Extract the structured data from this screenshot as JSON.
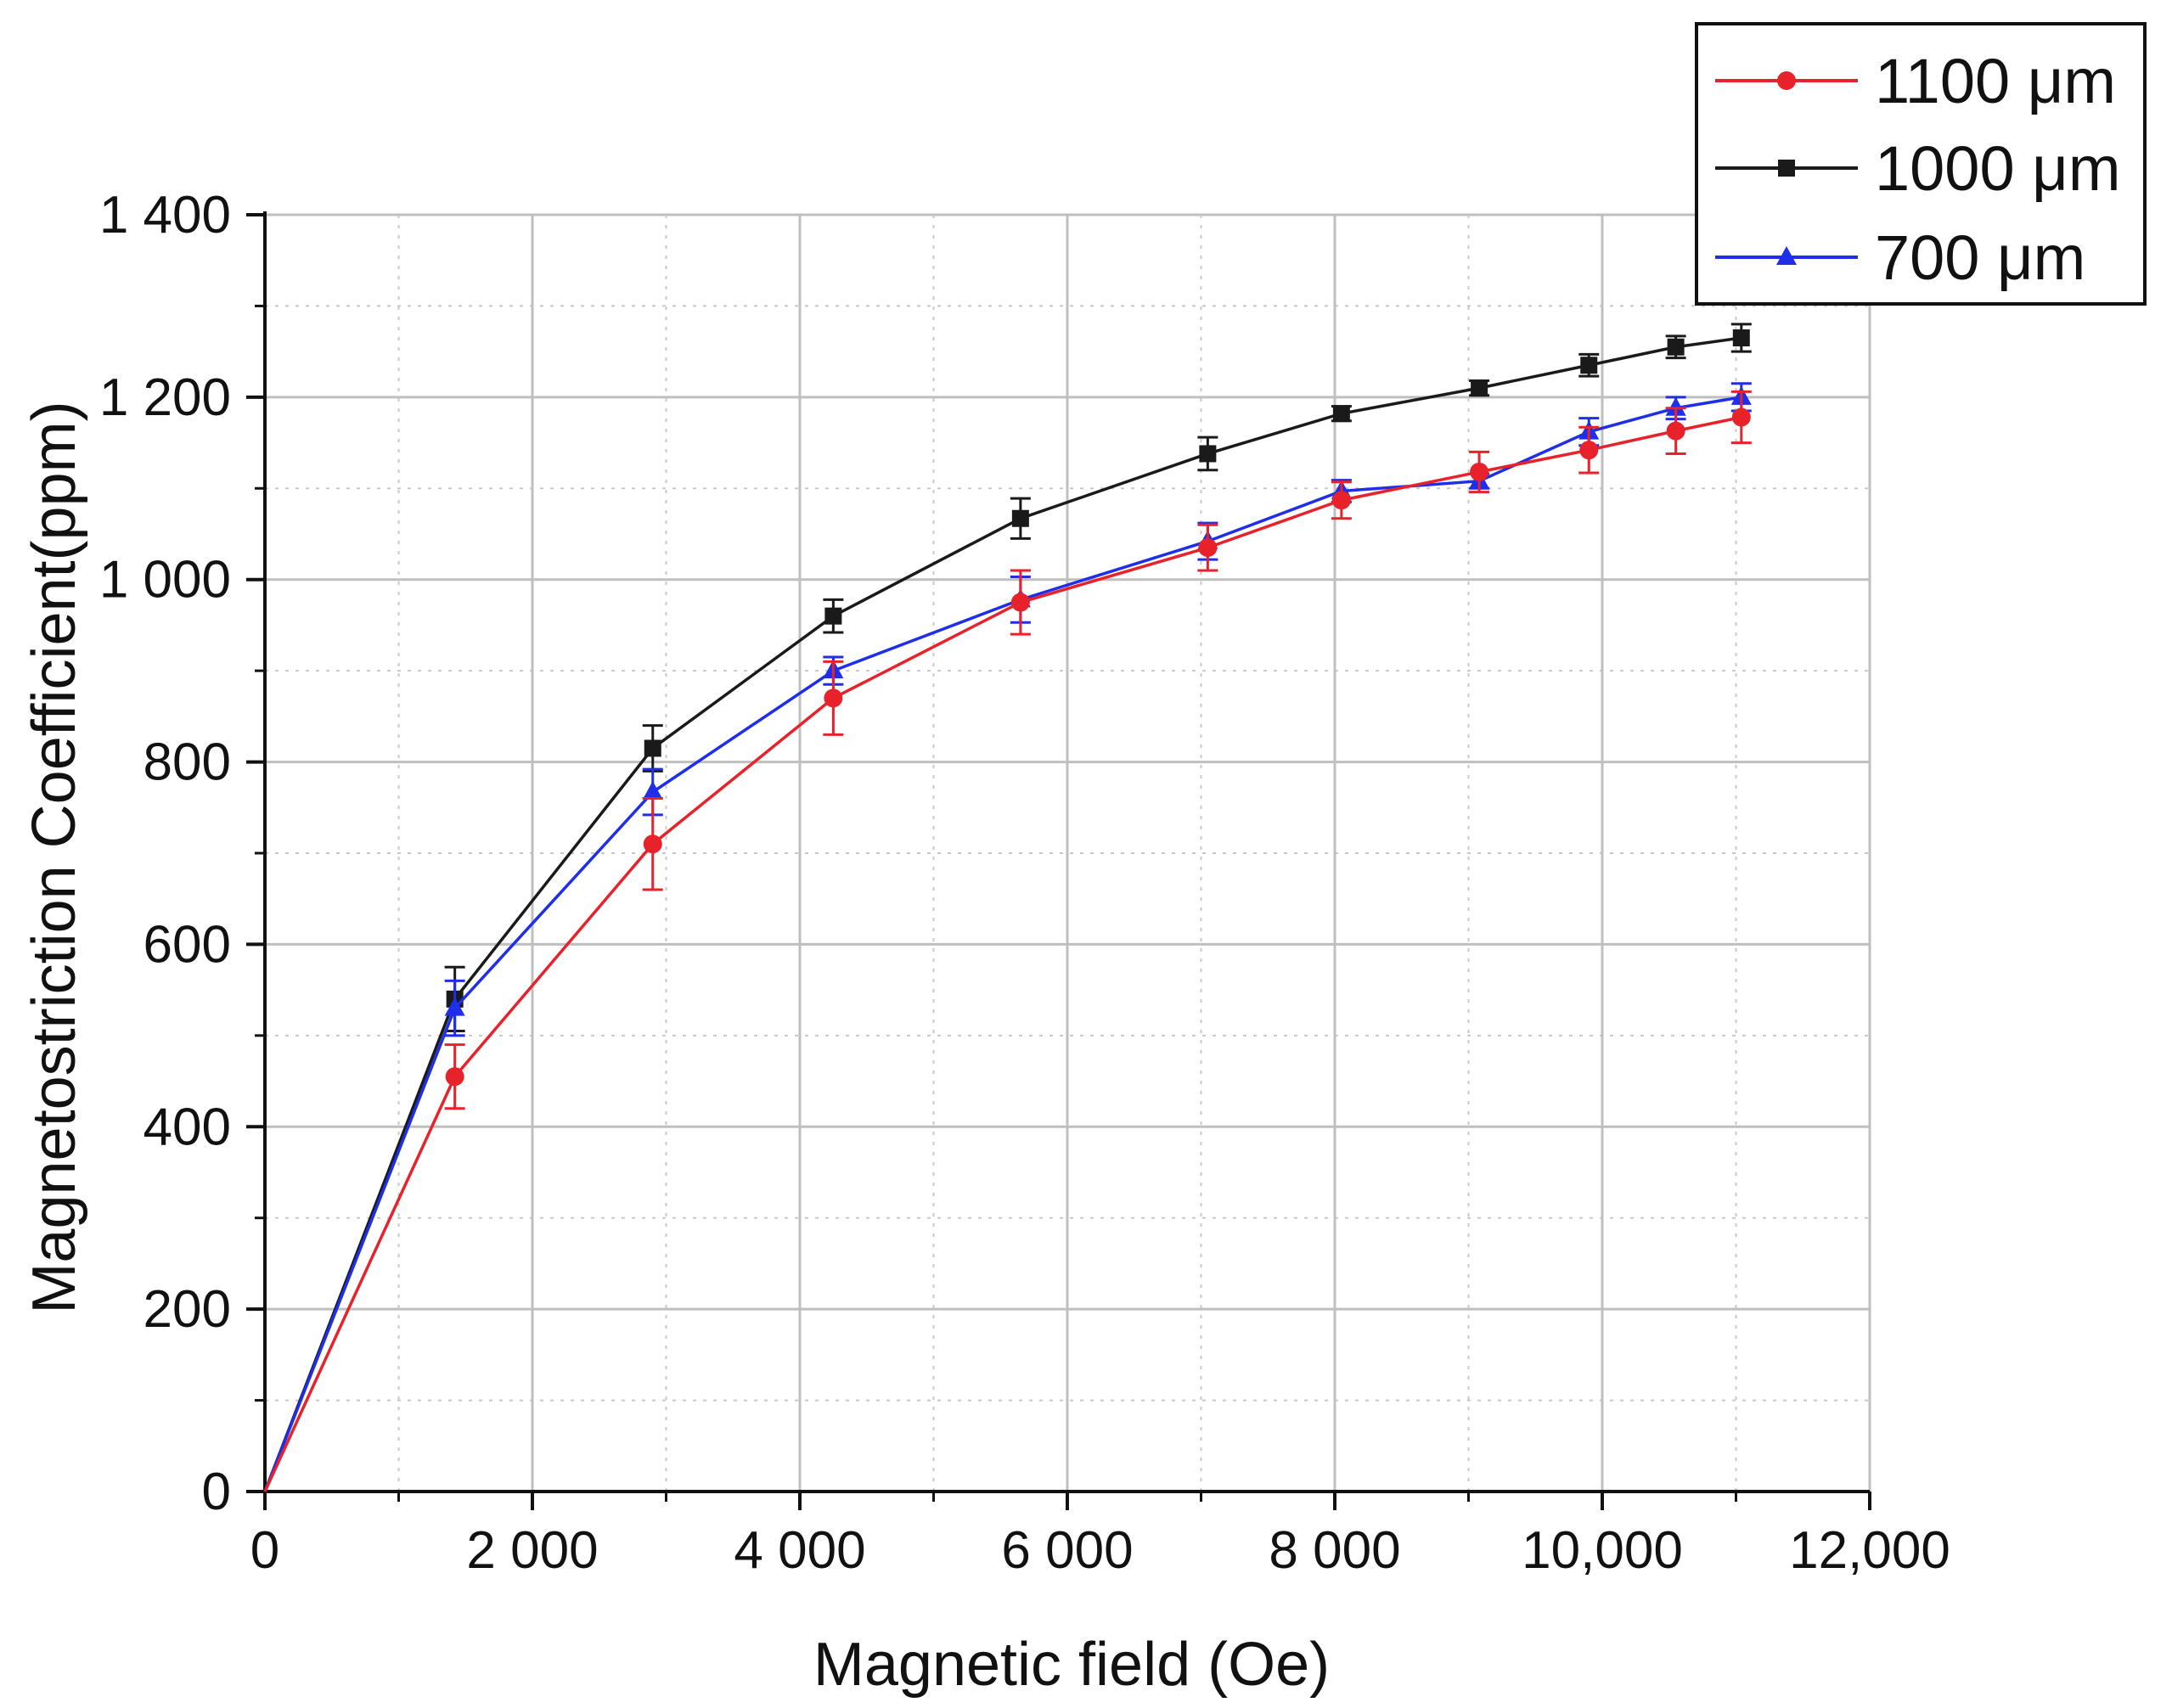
{
  "chart_data": {
    "type": "line",
    "title": "",
    "xlabel": "Magnetic field (Oe)",
    "ylabel": "Magnetostriction Coefficient(ppm)",
    "xlim": [
      0,
      12000
    ],
    "ylim": [
      0,
      1400
    ],
    "grid": true,
    "x_ticks": [
      0,
      2000,
      4000,
      6000,
      8000,
      10000,
      12000
    ],
    "x_tick_labels": [
      "0",
      "2 000",
      "4 000",
      "6 000",
      "8 000",
      "10,000",
      "12,000"
    ],
    "y_ticks": [
      0,
      200,
      400,
      600,
      800,
      1000,
      1200,
      1400
    ],
    "y_tick_labels": [
      "0",
      "200",
      "400",
      "600",
      "800",
      "1 000",
      "1 200",
      "1 400"
    ],
    "legend_position": "top-right",
    "series": [
      {
        "name": "1100 μm",
        "color": "#e8222a",
        "marker": "circle",
        "x": [
          0,
          1420,
          2900,
          4250,
          5650,
          7050,
          8050,
          9080,
          9900,
          10550,
          11040
        ],
        "values": [
          0,
          455,
          710,
          870,
          975,
          1035,
          1087,
          1118,
          1142,
          1163,
          1178
        ],
        "errors": [
          0,
          35,
          50,
          40,
          35,
          25,
          20,
          22,
          25,
          25,
          28
        ]
      },
      {
        "name": "1000 μm",
        "color": "#1a1a1a",
        "marker": "square",
        "x": [
          0,
          1420,
          2900,
          4250,
          5650,
          7050,
          8050,
          9080,
          9900,
          10550,
          11040
        ],
        "values": [
          0,
          540,
          815,
          960,
          1067,
          1138,
          1182,
          1210,
          1235,
          1255,
          1265
        ],
        "errors": [
          0,
          35,
          25,
          18,
          22,
          18,
          8,
          8,
          12,
          12,
          15
        ]
      },
      {
        "name": "700 μm",
        "color": "#1f2ee8",
        "marker": "triangle",
        "x": [
          0,
          1420,
          2900,
          4250,
          5650,
          7050,
          8050,
          9080,
          9900,
          10550,
          11040
        ],
        "values": [
          0,
          530,
          767,
          900,
          978,
          1042,
          1097,
          1108,
          1162,
          1188,
          1200
        ],
        "errors": [
          0,
          30,
          25,
          15,
          25,
          20,
          12,
          8,
          15,
          12,
          15
        ]
      }
    ]
  }
}
